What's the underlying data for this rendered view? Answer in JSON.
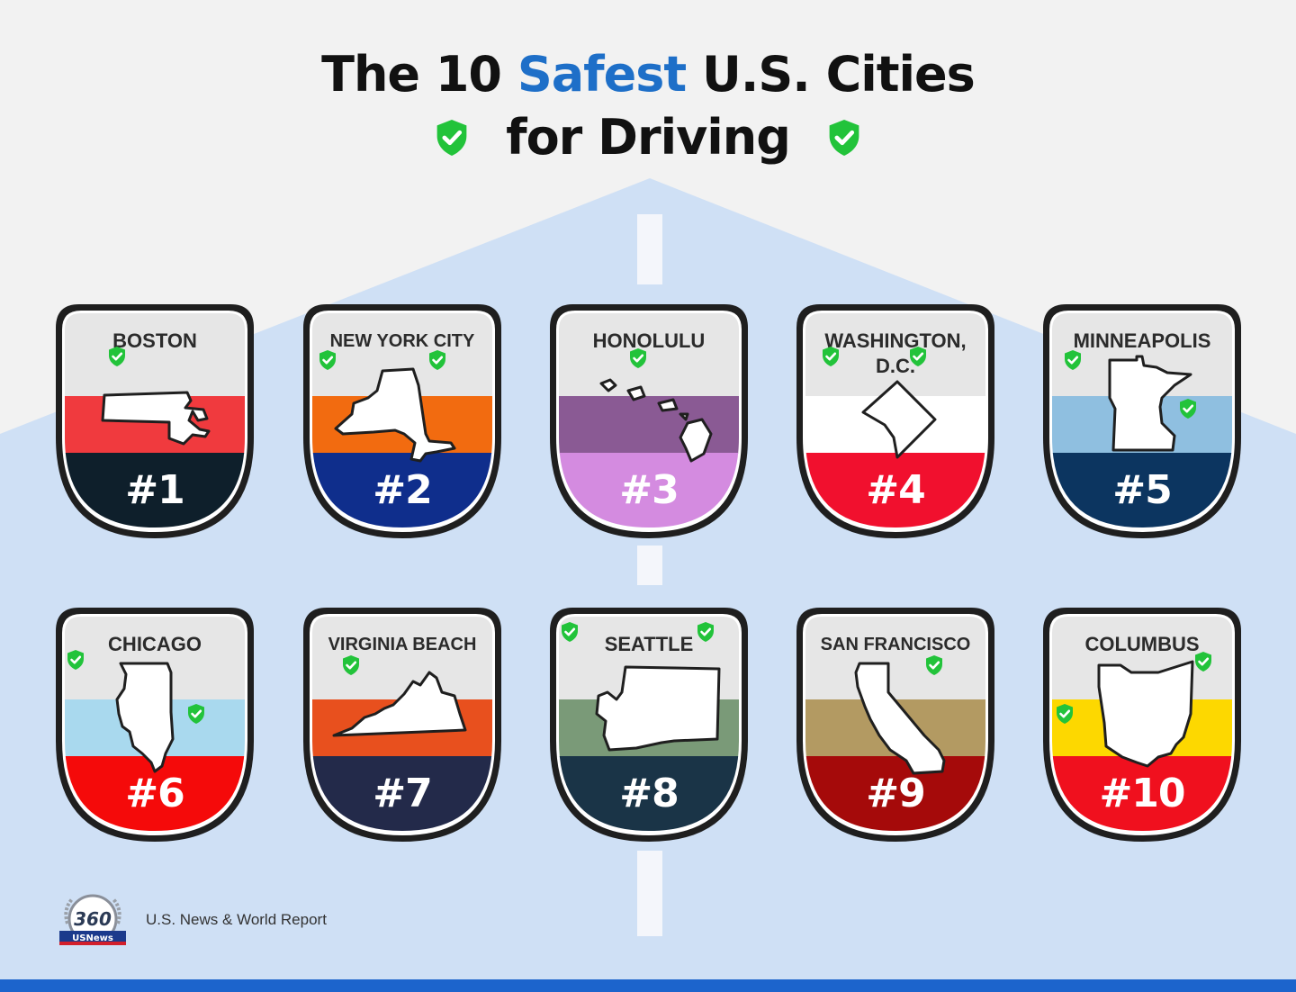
{
  "title": {
    "part1": "The 10 ",
    "accent": "Safest",
    "part2": " U.S. Cities",
    "line2": "for Driving"
  },
  "colors": {
    "accent": "#1e6fc8",
    "check_green": "#22c33a",
    "road": "#cfe0f5",
    "bar": "#1c64cc"
  },
  "cities": [
    {
      "rank": "#1",
      "name": "BOSTON",
      "mid": "#f03a3e",
      "bottom": "#0e1f2b"
    },
    {
      "rank": "#2",
      "name": "NEW YORK CITY",
      "mid": "#f26b10",
      "bottom": "#0f2e8c"
    },
    {
      "rank": "#3",
      "name": "HONOLULU",
      "mid": "#8a5a94",
      "bottom": "#d48be0"
    },
    {
      "rank": "#4",
      "name_line1": "WASHINGTON,",
      "name_line2": "D.C.",
      "mid": "#ffffff",
      "bottom": "#f1102e"
    },
    {
      "rank": "#5",
      "name": "MINNEAPOLIS",
      "mid": "#8fbfe0",
      "bottom": "#0c3560"
    },
    {
      "rank": "#6",
      "name": "CHICAGO",
      "mid": "#a9d9ee",
      "bottom": "#f50a0a"
    },
    {
      "rank": "#7",
      "name": "VIRGINIA BEACH",
      "mid": "#e8501e",
      "bottom": "#232a4a"
    },
    {
      "rank": "#8",
      "name": "SEATTLE",
      "mid": "#7a9a78",
      "bottom": "#1a3447"
    },
    {
      "rank": "#9",
      "name": "SAN FRANCISCO",
      "mid": "#b39a62",
      "bottom": "#a50a0a"
    },
    {
      "rank": "#10",
      "name": "COLUMBUS",
      "mid": "#fdd800",
      "bottom": "#f0101e"
    }
  ],
  "icons": {
    "check": "shield-check-icon",
    "logo": "usnews-360-logo"
  },
  "footer": {
    "source": "U.S. News & World Report"
  }
}
